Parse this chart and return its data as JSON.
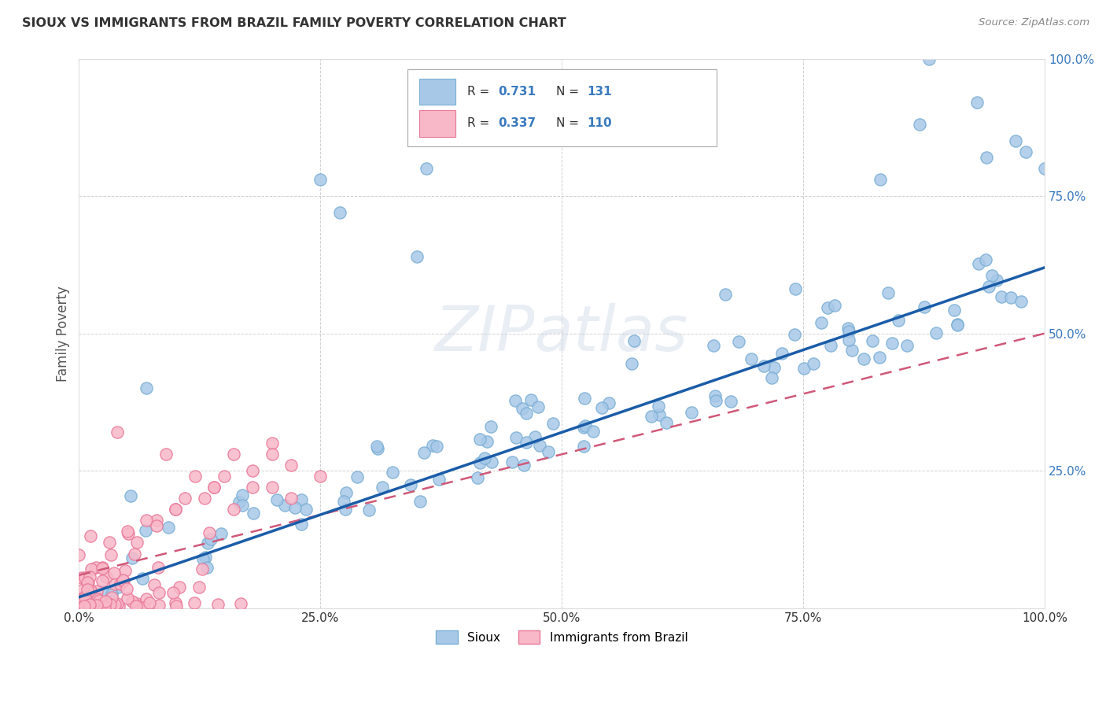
{
  "title": "SIOUX VS IMMIGRANTS FROM BRAZIL FAMILY POVERTY CORRELATION CHART",
  "source": "Source: ZipAtlas.com",
  "ylabel": "Family Poverty",
  "sioux_color": "#a8c8e8",
  "sioux_edge_color": "#7aafd4",
  "brazil_color": "#f8b8c8",
  "brazil_edge_color": "#e87898",
  "sioux_line_color": "#1a5ca8",
  "brazil_line_color": "#d05878",
  "legend_blue_fill": "#a8c8e8",
  "legend_pink_fill": "#f8b8c8",
  "watermark_color": "#d0d8e8",
  "background_color": "#ffffff",
  "grid_color": "#cccccc",
  "ytick_color": "#3a7abf",
  "xtick_color": "#333333",
  "title_color": "#333333",
  "source_color": "#888888",
  "ylabel_color": "#555555"
}
